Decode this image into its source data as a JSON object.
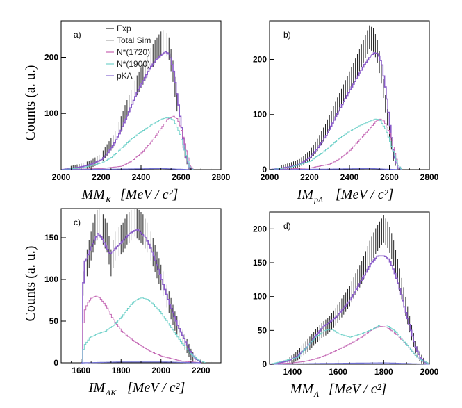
{
  "figure": {
    "y_axis_label": "Counts (a. u.)",
    "legend": [
      {
        "label": "Exp",
        "color": "#3a3a3a"
      },
      {
        "label": "Total Sim",
        "color": "#b0b0b0"
      },
      {
        "label": "N*(1720)",
        "color": "#cc6fb8"
      },
      {
        "label": "N*(1900)",
        "color": "#7fd6cf"
      },
      {
        "label": "pKΛ",
        "color": "#8f74d6"
      }
    ],
    "colors": {
      "exp": "#222222",
      "total_sim": "#8a5cc9",
      "n1720": "#c467b4",
      "n1900": "#6fd1c9",
      "pkl": "#6f6fd0"
    }
  },
  "chart_data": [
    {
      "type": "histogram",
      "panel_label": "a)",
      "title": "",
      "xlabel_main": "MM",
      "xlabel_sub": "K",
      "xlabel_unit": "[MeV / c²]",
      "xlim": [
        2000,
        2800
      ],
      "ylim": [
        0,
        265
      ],
      "xticks": [
        "2000",
        "2200",
        "2400",
        "2600",
        "2800"
      ],
      "yticks": [
        "100",
        "200"
      ],
      "series": [
        {
          "name": "Exp",
          "x": [
            2050,
            2100,
            2150,
            2200,
            2230,
            2260,
            2290,
            2320,
            2350,
            2380,
            2410,
            2440,
            2470,
            2500,
            2520,
            2540,
            2560,
            2580,
            2600,
            2620,
            2640
          ],
          "y": [
            2,
            5,
            10,
            20,
            35,
            50,
            72,
            100,
            125,
            150,
            170,
            190,
            210,
            225,
            230,
            215,
            175,
            120,
            70,
            30,
            5
          ]
        },
        {
          "name": "Total Sim",
          "x": [
            2000,
            2100,
            2150,
            2200,
            2230,
            2260,
            2290,
            2320,
            2350,
            2380,
            2410,
            2440,
            2470,
            2500,
            2520,
            2540,
            2560,
            2580,
            2600,
            2620,
            2640,
            2660
          ],
          "y": [
            0,
            5,
            10,
            18,
            30,
            45,
            65,
            90,
            115,
            140,
            160,
            180,
            195,
            205,
            210,
            205,
            175,
            125,
            75,
            25,
            3,
            0
          ]
        },
        {
          "name": "N*(1720)",
          "x": [
            2000,
            2200,
            2300,
            2350,
            2400,
            2450,
            2500,
            2530,
            2560,
            2580,
            2600,
            2620,
            2640,
            2660
          ],
          "y": [
            0,
            2,
            6,
            15,
            30,
            50,
            75,
            90,
            95,
            90,
            70,
            40,
            8,
            0
          ]
        },
        {
          "name": "N*(1900)",
          "x": [
            2000,
            2100,
            2200,
            2250,
            2300,
            2350,
            2400,
            2450,
            2500,
            2530,
            2560,
            2590,
            2620,
            2640,
            2660
          ],
          "y": [
            0,
            3,
            12,
            22,
            38,
            55,
            68,
            80,
            90,
            93,
            88,
            65,
            30,
            5,
            0
          ]
        },
        {
          "name": "pKΛ",
          "x": [
            2000,
            2300,
            2500,
            2640
          ],
          "y": [
            0,
            1,
            2,
            0
          ]
        }
      ]
    },
    {
      "type": "histogram",
      "panel_label": "b)",
      "title": "",
      "xlabel_main": "IM",
      "xlabel_sub": "pΛ",
      "xlabel_unit": "[MeV / c²]",
      "xlim": [
        2000,
        2800
      ],
      "ylim": [
        0,
        270
      ],
      "xticks": [
        "2000",
        "2200",
        "2400",
        "2600",
        "2800"
      ],
      "yticks": [
        "0",
        "100",
        "200"
      ],
      "series": [
        {
          "name": "Exp",
          "x": [
            2060,
            2100,
            2150,
            2200,
            2240,
            2280,
            2320,
            2360,
            2400,
            2440,
            2470,
            2500,
            2520,
            2540,
            2560,
            2580,
            2600,
            2620,
            2640
          ],
          "y": [
            3,
            6,
            12,
            25,
            45,
            70,
            100,
            130,
            160,
            190,
            215,
            240,
            235,
            215,
            175,
            120,
            70,
            25,
            4
          ]
        },
        {
          "name": "Total Sim",
          "x": [
            2000,
            2100,
            2150,
            2200,
            2240,
            2280,
            2320,
            2360,
            2400,
            2440,
            2470,
            2500,
            2520,
            2540,
            2560,
            2580,
            2600,
            2620,
            2640,
            2660
          ],
          "y": [
            0,
            5,
            10,
            22,
            40,
            62,
            90,
            118,
            145,
            170,
            190,
            205,
            212,
            210,
            190,
            140,
            80,
            25,
            3,
            0
          ]
        },
        {
          "name": "N*(1720)",
          "x": [
            2000,
            2200,
            2300,
            2350,
            2400,
            2450,
            2500,
            2530,
            2550,
            2570,
            2600,
            2620,
            2640,
            2660
          ],
          "y": [
            0,
            3,
            10,
            20,
            35,
            55,
            75,
            88,
            92,
            88,
            65,
            35,
            8,
            0
          ]
        },
        {
          "name": "N*(1900)",
          "x": [
            2000,
            2100,
            2200,
            2250,
            2300,
            2350,
            2400,
            2450,
            2500,
            2530,
            2550,
            2580,
            2610,
            2640,
            2660
          ],
          "y": [
            0,
            4,
            15,
            28,
            42,
            58,
            70,
            80,
            88,
            92,
            90,
            72,
            40,
            8,
            0
          ]
        },
        {
          "name": "pKΛ",
          "x": [
            2000,
            2300,
            2500,
            2640
          ],
          "y": [
            0,
            1,
            2,
            0
          ]
        }
      ]
    },
    {
      "type": "histogram",
      "panel_label": "c)",
      "title": "",
      "xlabel_main": "IM",
      "xlabel_sub": "ΛK",
      "xlabel_unit": "[MeV / c²]",
      "xlim": [
        1500,
        2300
      ],
      "ylim": [
        0,
        185
      ],
      "xticks": [
        "1600",
        "1800",
        "2000",
        "2200"
      ],
      "yticks": [
        "0",
        "50",
        "100",
        "150"
      ],
      "series": [
        {
          "name": "Exp",
          "x": [
            1610,
            1630,
            1650,
            1670,
            1690,
            1710,
            1730,
            1750,
            1770,
            1790,
            1810,
            1830,
            1850,
            1870,
            1890,
            1910,
            1930,
            1950,
            1970,
            1990,
            2010,
            2030,
            2050,
            2070,
            2090,
            2110,
            2130,
            2150,
            2170
          ],
          "y": [
            95,
            120,
            140,
            160,
            170,
            160,
            150,
            120,
            140,
            145,
            150,
            160,
            165,
            170,
            165,
            160,
            150,
            140,
            125,
            110,
            95,
            80,
            65,
            50,
            40,
            30,
            20,
            10,
            4
          ]
        },
        {
          "name": "Total Sim",
          "x": [
            1600,
            1610,
            1625,
            1640,
            1660,
            1680,
            1700,
            1720,
            1740,
            1760,
            1780,
            1800,
            1820,
            1840,
            1860,
            1880,
            1900,
            1920,
            1940,
            1960,
            1980,
            2000,
            2020,
            2040,
            2060,
            2080,
            2100,
            2120,
            2140,
            2160,
            2180,
            2200
          ],
          "y": [
            0,
            120,
            125,
            135,
            145,
            155,
            150,
            140,
            130,
            135,
            140,
            145,
            150,
            155,
            158,
            160,
            155,
            150,
            140,
            128,
            115,
            100,
            85,
            70,
            58,
            45,
            35,
            25,
            15,
            8,
            3,
            0
          ]
        },
        {
          "name": "N*(1720)",
          "x": [
            1600,
            1610,
            1630,
            1650,
            1670,
            1690,
            1710,
            1730,
            1750,
            1770,
            1800,
            1850,
            1900,
            1950,
            2000,
            2050,
            2100,
            2150,
            2200
          ],
          "y": [
            0,
            60,
            72,
            78,
            80,
            78,
            72,
            65,
            55,
            48,
            38,
            28,
            20,
            13,
            8,
            5,
            2,
            1,
            0
          ]
        },
        {
          "name": "N*(1900)",
          "x": [
            1600,
            1610,
            1640,
            1680,
            1720,
            1760,
            1800,
            1840,
            1870,
            1900,
            1930,
            1960,
            1990,
            2020,
            2060,
            2100,
            2140,
            2180,
            2220
          ],
          "y": [
            0,
            20,
            30,
            35,
            38,
            45,
            55,
            68,
            75,
            78,
            76,
            70,
            62,
            52,
            38,
            24,
            12,
            4,
            0
          ]
        },
        {
          "name": "pKΛ",
          "x": [
            1600,
            1800,
            2000,
            2200
          ],
          "y": [
            0,
            1,
            1,
            0
          ]
        }
      ]
    },
    {
      "type": "histogram",
      "panel_label": "d)",
      "title": "",
      "xlabel_main": "MM",
      "xlabel_sub": "Λ",
      "xlabel_unit": "[MeV / c²]",
      "xlim": [
        1300,
        2000
      ],
      "ylim": [
        0,
        225
      ],
      "xticks": [
        "1400",
        "1600",
        "1800",
        "2000"
      ],
      "yticks": [
        "0",
        "50",
        "100",
        "150",
        "200"
      ],
      "series": [
        {
          "name": "Exp",
          "x": [
            1380,
            1420,
            1460,
            1500,
            1530,
            1560,
            1590,
            1620,
            1650,
            1680,
            1710,
            1740,
            1770,
            1800,
            1820,
            1840,
            1860,
            1880,
            1900,
            1920,
            1940,
            1960,
            1980
          ],
          "y": [
            3,
            12,
            25,
            40,
            50,
            58,
            70,
            85,
            100,
            120,
            140,
            165,
            185,
            200,
            190,
            170,
            140,
            110,
            80,
            50,
            25,
            10,
            2
          ]
        },
        {
          "name": "Total Sim",
          "x": [
            1300,
            1340,
            1380,
            1420,
            1460,
            1500,
            1530,
            1560,
            1590,
            1620,
            1650,
            1680,
            1710,
            1740,
            1770,
            1800,
            1820,
            1840,
            1860,
            1880,
            1900,
            1920,
            1940,
            1960,
            1980,
            2000
          ],
          "y": [
            0,
            2,
            5,
            12,
            25,
            42,
            55,
            62,
            70,
            82,
            95,
            112,
            130,
            148,
            160,
            160,
            155,
            140,
            120,
            95,
            70,
            45,
            22,
            8,
            2,
            0
          ]
        },
        {
          "name": "N*(1720)",
          "x": [
            1300,
            1400,
            1450,
            1500,
            1550,
            1600,
            1650,
            1700,
            1750,
            1780,
            1810,
            1850,
            1900,
            1950,
            2000
          ],
          "y": [
            0,
            2,
            4,
            8,
            14,
            22,
            30,
            40,
            52,
            56,
            55,
            45,
            28,
            8,
            0
          ]
        },
        {
          "name": "N*(1900)",
          "x": [
            1300,
            1420,
            1460,
            1500,
            1540,
            1570,
            1600,
            1650,
            1700,
            1750,
            1780,
            1810,
            1850,
            1900,
            1950,
            2000
          ],
          "y": [
            0,
            10,
            25,
            40,
            50,
            52,
            45,
            40,
            45,
            52,
            58,
            58,
            48,
            28,
            8,
            0
          ]
        },
        {
          "name": "pKΛ",
          "x": [
            1300,
            1500,
            1800,
            2000
          ],
          "y": [
            0,
            1,
            2,
            0
          ]
        }
      ]
    }
  ]
}
